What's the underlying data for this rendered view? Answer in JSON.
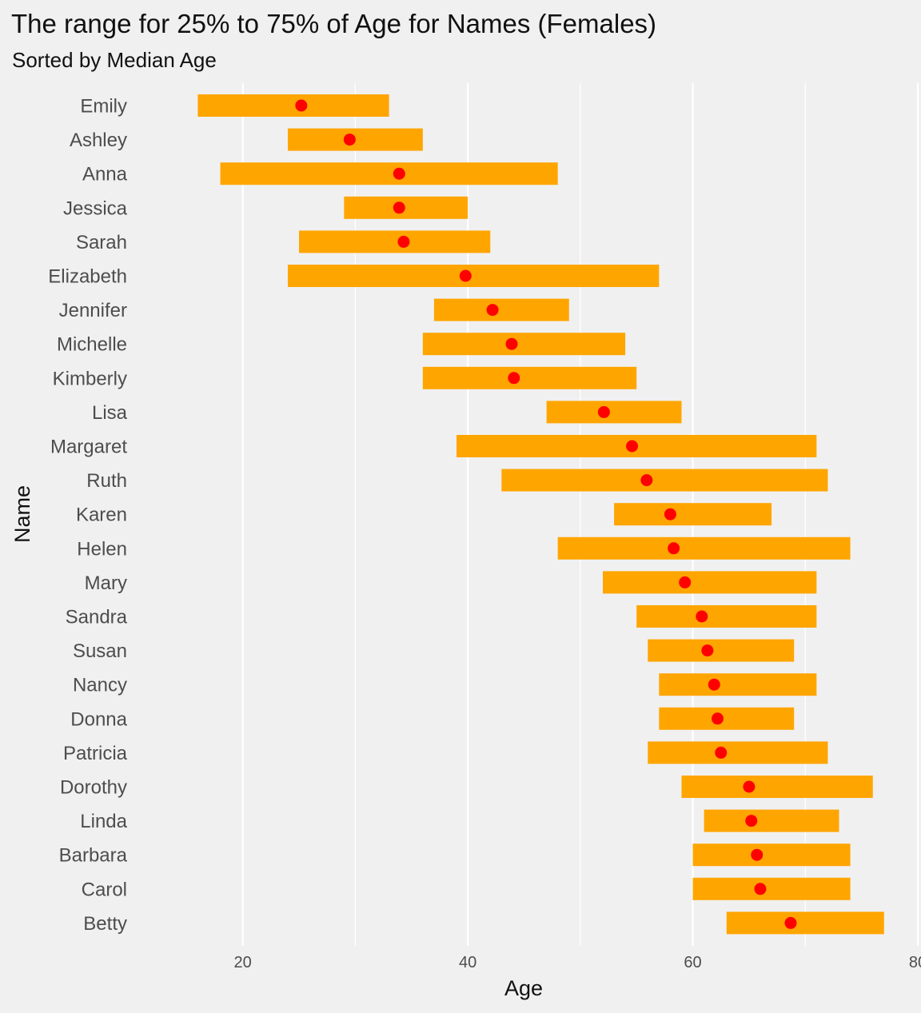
{
  "chart_data": {
    "type": "range",
    "title": "The range for 25% to 75% of Age for Names (Females)",
    "subtitle": "Sorted by Median Age",
    "xlabel": "Age",
    "ylabel": "Name",
    "xlim": [
      10.5,
      80
    ],
    "xticks": [
      20,
      40,
      60,
      80
    ],
    "xtick_labels": [
      "20",
      "40",
      "60",
      "80"
    ],
    "grid": true,
    "colors": {
      "background": "#f0f0f0",
      "grid": "#ffffff",
      "range_bar": "#ffa500",
      "median_point": "#ff0000"
    },
    "series": [
      {
        "name": "25%–75% range",
        "kind": "bar"
      },
      {
        "name": "median",
        "kind": "point"
      }
    ],
    "categories": [
      "Emily",
      "Ashley",
      "Anna",
      "Jessica",
      "Sarah",
      "Elizabeth",
      "Jennifer",
      "Michelle",
      "Kimberly",
      "Lisa",
      "Margaret",
      "Ruth",
      "Karen",
      "Helen",
      "Mary",
      "Sandra",
      "Susan",
      "Nancy",
      "Donna",
      "Patricia",
      "Dorothy",
      "Linda",
      "Barbara",
      "Carol",
      "Betty"
    ],
    "q25": [
      16,
      24,
      18,
      29,
      25,
      24,
      37,
      36,
      36,
      47,
      39,
      43,
      53,
      48,
      52,
      55,
      56,
      57,
      57,
      56,
      59,
      61,
      60,
      60,
      63
    ],
    "q75": [
      33,
      36,
      48,
      40,
      42,
      57,
      49,
      54,
      55,
      59,
      71,
      72,
      67,
      74,
      71,
      71,
      69,
      71,
      69,
      72,
      76,
      73,
      74,
      74,
      77
    ],
    "median": [
      25.2,
      29.5,
      33.9,
      33.9,
      34.3,
      39.8,
      42.2,
      43.9,
      44.1,
      52.1,
      54.6,
      55.9,
      58.0,
      58.3,
      59.3,
      60.8,
      61.3,
      61.9,
      62.2,
      62.5,
      65.0,
      65.2,
      65.7,
      66.0,
      68.7
    ]
  }
}
